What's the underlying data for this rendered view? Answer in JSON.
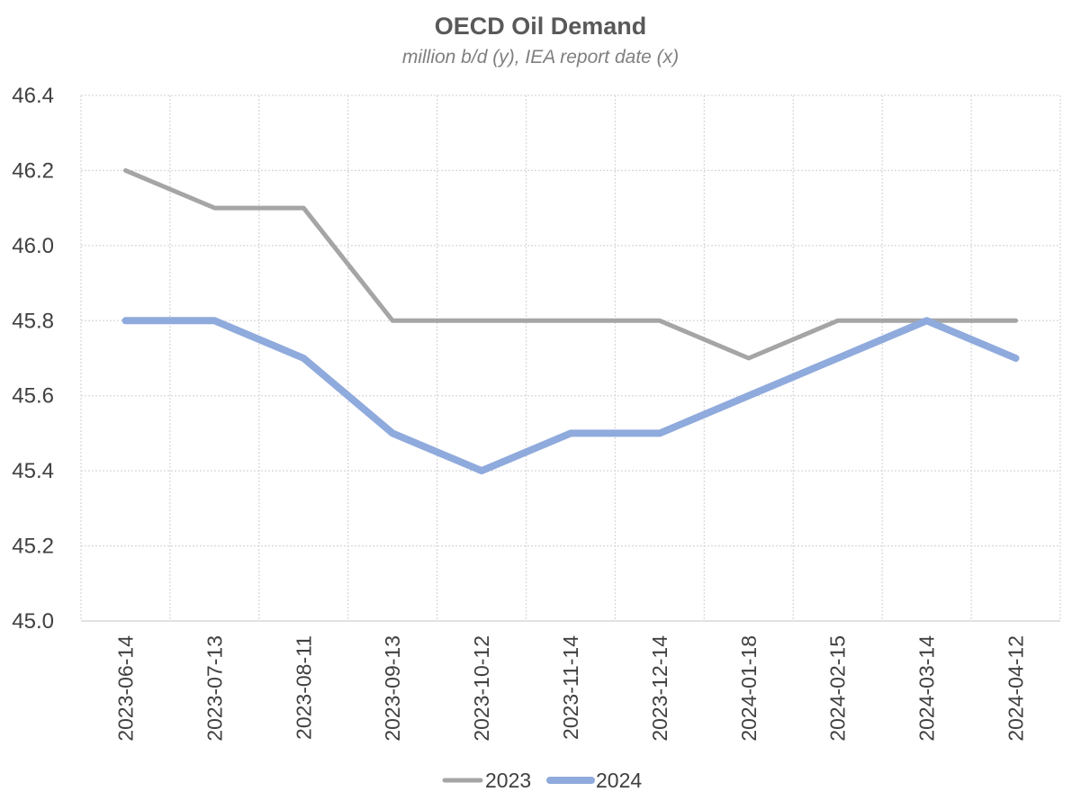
{
  "chart_data": {
    "type": "line",
    "title": "OECD Oil Demand",
    "subtitle": "million b/d (y), IEA report date (x)",
    "xlabel": "",
    "ylabel": "",
    "categories": [
      "2023-06-14",
      "2023-07-13",
      "2023-08-11",
      "2023-09-13",
      "2023-10-12",
      "2023-11-14",
      "2023-12-14",
      "2024-01-18",
      "2024-02-15",
      "2024-03-14",
      "2024-04-12"
    ],
    "ylim": [
      45.0,
      46.4
    ],
    "yticks": [
      "45.0",
      "45.2",
      "45.4",
      "45.6",
      "45.8",
      "46.0",
      "46.2",
      "46.4"
    ],
    "grid": true,
    "legend_position": "bottom",
    "series": [
      {
        "name": "2023",
        "color": "#a5a5a5",
        "values": [
          46.2,
          46.1,
          46.1,
          45.8,
          45.8,
          45.8,
          45.8,
          45.7,
          45.8,
          45.8,
          45.8
        ]
      },
      {
        "name": "2024",
        "color": "#8faadc",
        "values": [
          45.8,
          45.8,
          45.7,
          45.5,
          45.4,
          45.5,
          45.5,
          45.6,
          45.7,
          45.8,
          45.7
        ]
      }
    ]
  }
}
